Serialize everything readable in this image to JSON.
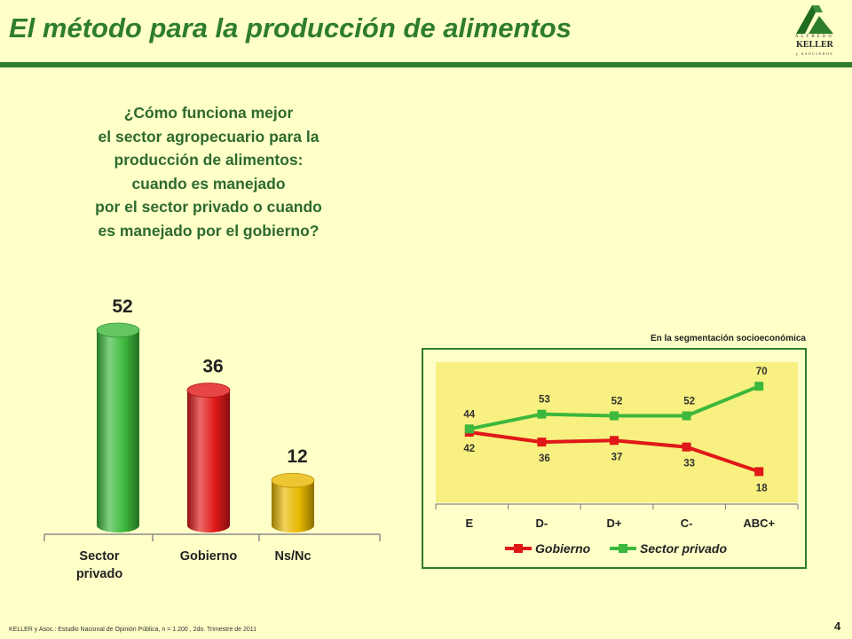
{
  "header": {
    "title": "El método para la producción de alimentos",
    "logo": {
      "top": "ALFREDO",
      "name": "KELLER",
      "sub": "y ASOCIADOS"
    }
  },
  "question": {
    "lines": [
      "¿Cómo funciona mejor",
      "el sector agropecuario para la",
      "producción de alimentos:",
      "cuando es manejado",
      "por el sector privado o cuando",
      "es manejado por el gobierno?"
    ]
  },
  "segment_caption": "En la segmentación socioeconómica",
  "footer": "KELLER y Asoc.: Estudio Nacional de Opinión Pública, n = 1.200 , 2do. Trimestre de 2011",
  "page_number": "4",
  "colors": {
    "green": "#3cb83c",
    "red": "#e01818",
    "yellow": "#e8b800",
    "title_green": "#2e7d2e",
    "background": "#ffffc8",
    "plot_area": "#f8f080"
  },
  "chart_data": [
    {
      "type": "bar",
      "categories": [
        "Sector privado",
        "Gobierno",
        "Ns/Nc"
      ],
      "category_lines": [
        [
          "Sector",
          "privado"
        ],
        [
          "Gobierno"
        ],
        [
          "Ns/Nc"
        ]
      ],
      "values": [
        52,
        36,
        12
      ],
      "colors": [
        "#3cb83c",
        "#e01818",
        "#e8b800"
      ],
      "ylim": [
        0,
        60
      ]
    },
    {
      "type": "line",
      "categories": [
        "E",
        "D-",
        "D+",
        "C-",
        "ABC+"
      ],
      "series": [
        {
          "name": "Gobierno",
          "values": [
            42,
            36,
            37,
            33,
            18
          ],
          "color": "#e01818"
        },
        {
          "name": "Sector privado",
          "values": [
            44,
            53,
            52,
            52,
            70
          ],
          "color": "#3cb83c"
        }
      ],
      "legend": "bottom"
    }
  ]
}
